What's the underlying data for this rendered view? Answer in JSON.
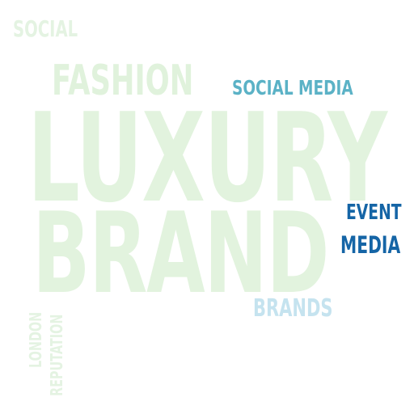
{
  "words": {
    "luxury": {
      "text": "LUXURY",
      "color": "#e2f3de"
    },
    "brand": {
      "text": "BRAND",
      "color": "#e2f3de"
    },
    "fashion": {
      "text": "FASHION",
      "color": "#e0f2dc"
    },
    "social": {
      "text": "SOCIAL",
      "color": "#e4f3e2"
    },
    "social_media": {
      "text": "SOCIAL MEDIA",
      "color": "#5bb2c6"
    },
    "event": {
      "text": "EVENT",
      "color": "#1565a6"
    },
    "media": {
      "text": "MEDIA",
      "color": "#1565a6"
    },
    "brands": {
      "text": "BRANDS",
      "color": "#c5e3ef"
    },
    "london": {
      "text": "LONDON",
      "color": "#e4f3e2"
    },
    "reputation": {
      "text": "REPUTATION",
      "color": "#e4f3e2"
    }
  }
}
